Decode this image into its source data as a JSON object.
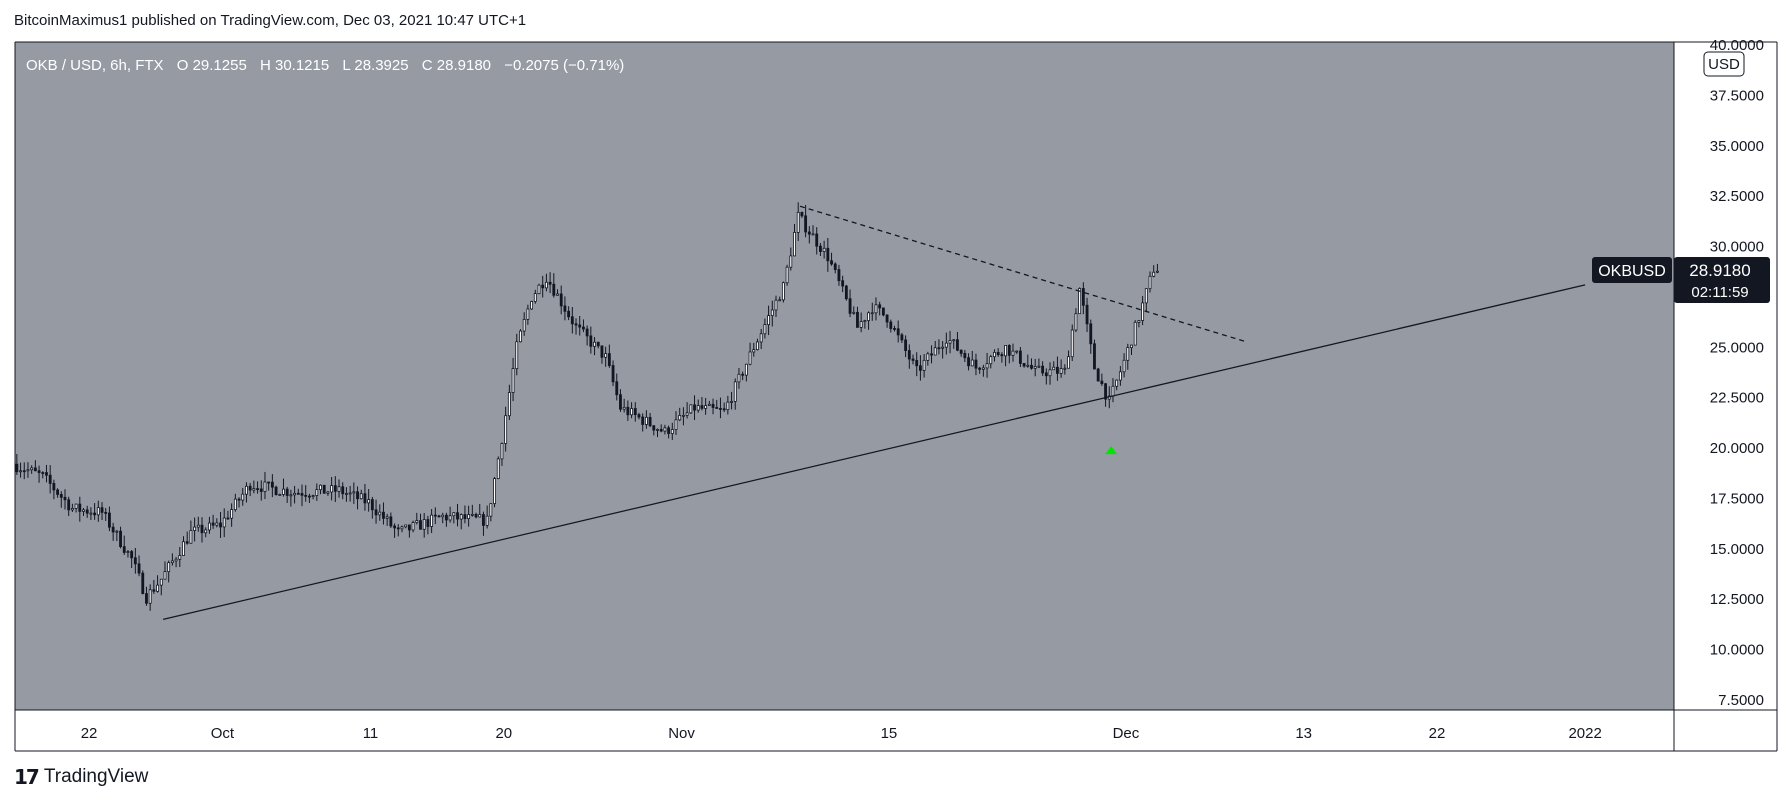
{
  "header": {
    "text": "BitcoinMaximus1 published on TradingView.com, Dec 03, 2021 10:47 UTC+1"
  },
  "footer": {
    "brand": "TradingView",
    "logo_glyph": "17"
  },
  "colors": {
    "plot_bg": "#959aa3",
    "candle_body": "#131722",
    "candle_hollow": "#ffffff",
    "trendline": "#131722",
    "marker": "#00e600",
    "badge_bg": "#131722",
    "axis_border": "#131722"
  },
  "legend": {
    "symbol": "OKB / USD, 6h, FTX",
    "o_key": "O",
    "o_val": "29.1255",
    "h_key": "H",
    "h_val": "30.1215",
    "l_key": "L",
    "l_val": "28.3925",
    "c_key": "C",
    "c_val": "28.9180",
    "change": "−0.2075 (−0.71%)"
  },
  "price_badge": {
    "symbol": "OKBUSD",
    "price": "28.9180",
    "countdown": "02:11:59"
  },
  "chart_data": {
    "type": "candlestick",
    "currency_label": "USD",
    "y_ticks": [
      "40.0000",
      "37.5000",
      "35.0000",
      "32.5000",
      "30.0000",
      "25.0000",
      "22.5000",
      "20.0000",
      "17.5000",
      "15.0000",
      "12.5000",
      "10.0000",
      "7.5000"
    ],
    "ylim": [
      7.5,
      40
    ],
    "x_ticks": [
      {
        "label": "22",
        "date": "2021-09-22"
      },
      {
        "label": "Oct",
        "date": "2021-10-01"
      },
      {
        "label": "11",
        "date": "2021-10-11"
      },
      {
        "label": "20",
        "date": "2021-10-20"
      },
      {
        "label": "Nov",
        "date": "2021-11-01"
      },
      {
        "label": "15",
        "date": "2021-11-15"
      },
      {
        "label": "Dec",
        "date": "2021-12-01"
      },
      {
        "label": "13",
        "date": "2021-12-13"
      },
      {
        "label": "22",
        "date": "2021-12-22"
      },
      {
        "label": "2022",
        "date": "2022-01-01"
      }
    ],
    "x_range": [
      "2021-09-17",
      "2022-01-07"
    ],
    "price_key_points": [
      {
        "date": "2021-09-17",
        "price": 19.2
      },
      {
        "date": "2021-09-19",
        "price": 18.6
      },
      {
        "date": "2021-09-21",
        "price": 17.0
      },
      {
        "date": "2021-09-23",
        "price": 16.8
      },
      {
        "date": "2021-09-25",
        "price": 14.5
      },
      {
        "date": "2021-09-26",
        "price": 12.6
      },
      {
        "date": "2021-09-27",
        "price": 13.5
      },
      {
        "date": "2021-09-29",
        "price": 15.8
      },
      {
        "date": "2021-10-01",
        "price": 16.2
      },
      {
        "date": "2021-10-03",
        "price": 18.2
      },
      {
        "date": "2021-10-06",
        "price": 17.8
      },
      {
        "date": "2021-10-09",
        "price": 17.9
      },
      {
        "date": "2021-10-11",
        "price": 17.3
      },
      {
        "date": "2021-10-13",
        "price": 15.8
      },
      {
        "date": "2021-10-16",
        "price": 16.6
      },
      {
        "date": "2021-10-19",
        "price": 16.4
      },
      {
        "date": "2021-10-20",
        "price": 20.5
      },
      {
        "date": "2021-10-21",
        "price": 25.0
      },
      {
        "date": "2021-10-22",
        "price": 27.5
      },
      {
        "date": "2021-10-23",
        "price": 28.5
      },
      {
        "date": "2021-10-25",
        "price": 26.0
      },
      {
        "date": "2021-10-27",
        "price": 24.5
      },
      {
        "date": "2021-10-28",
        "price": 22.0
      },
      {
        "date": "2021-10-31",
        "price": 20.8
      },
      {
        "date": "2021-11-02",
        "price": 22.0
      },
      {
        "date": "2021-11-04",
        "price": 21.8
      },
      {
        "date": "2021-11-06",
        "price": 25.0
      },
      {
        "date": "2021-11-08",
        "price": 28.0
      },
      {
        "date": "2021-11-09",
        "price": 31.5
      },
      {
        "date": "2021-11-11",
        "price": 29.5
      },
      {
        "date": "2021-11-13",
        "price": 26.0
      },
      {
        "date": "2021-11-14",
        "price": 27.0
      },
      {
        "date": "2021-11-15",
        "price": 26.5
      },
      {
        "date": "2021-11-17",
        "price": 23.8
      },
      {
        "date": "2021-11-19",
        "price": 25.5
      },
      {
        "date": "2021-11-21",
        "price": 24.0
      },
      {
        "date": "2021-11-23",
        "price": 25.0
      },
      {
        "date": "2021-11-25",
        "price": 23.8
      },
      {
        "date": "2021-11-27",
        "price": 23.8
      },
      {
        "date": "2021-11-28",
        "price": 27.9
      },
      {
        "date": "2021-11-29",
        "price": 24.0
      },
      {
        "date": "2021-11-30",
        "price": 22.3
      },
      {
        "date": "2021-12-01",
        "price": 24.3
      },
      {
        "date": "2021-12-02",
        "price": 26.5
      },
      {
        "date": "2021-12-03",
        "price": 28.9
      }
    ],
    "annotations": {
      "ascending_support": {
        "from": {
          "date": "2021-09-27",
          "price": 11.5
        },
        "to": {
          "date": "2022-01-01",
          "price": 28.1
        }
      },
      "descending_resistance": {
        "from": {
          "date": "2021-11-09",
          "price": 32.0
        },
        "to": {
          "date": "2021-12-09",
          "price": 25.3
        }
      },
      "marker": {
        "date": "2021-11-30",
        "price": 19.9
      }
    }
  }
}
